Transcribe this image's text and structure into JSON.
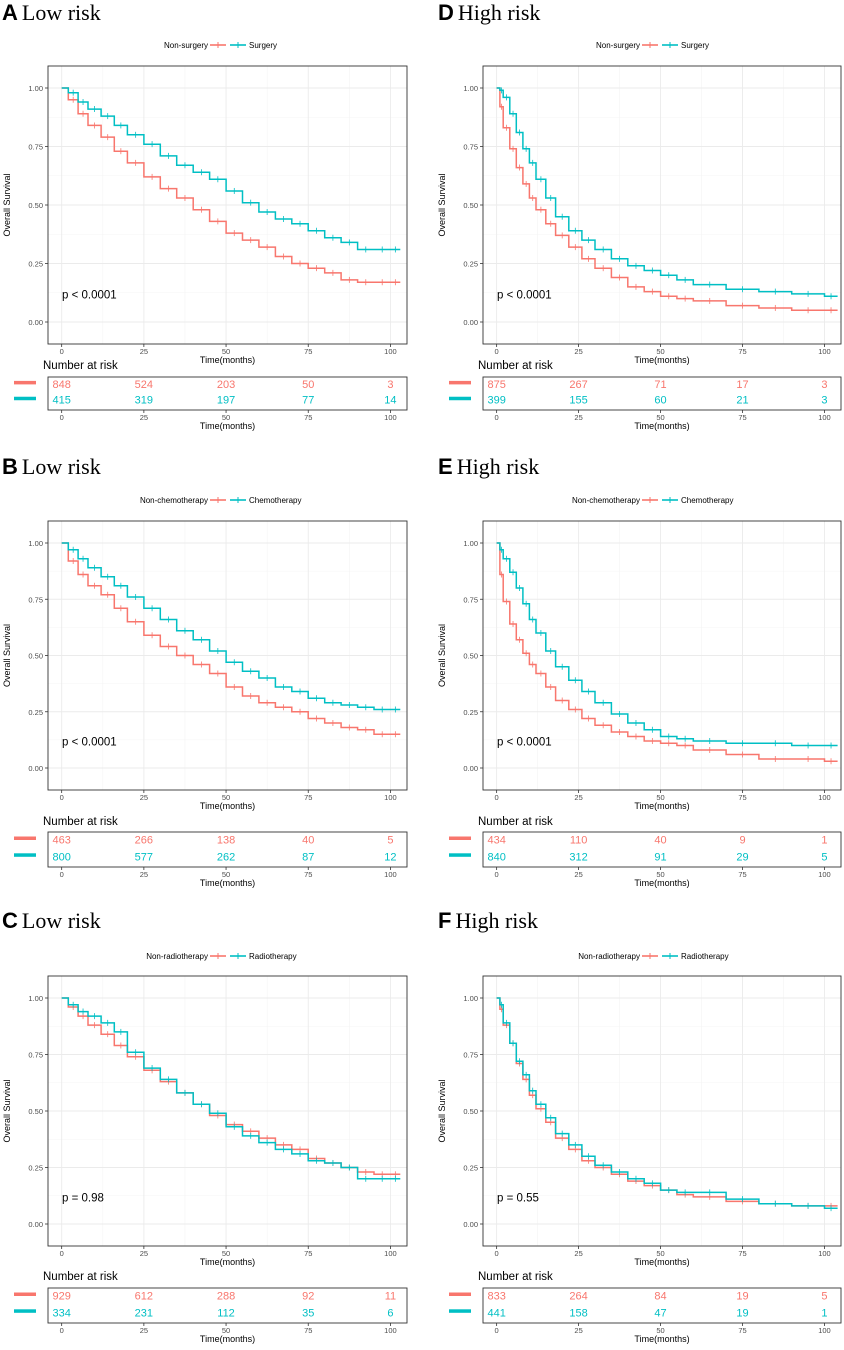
{
  "figure": {
    "x_axis_label": "Time(months)",
    "y_axis_label": "Overall Survival",
    "risk_table_title": "Number at risk",
    "colors": {
      "group1": "#F8766D",
      "group2": "#00BFC4",
      "frame": "#333333",
      "grid": "#EBEBEB",
      "tick_text": "#4D4D4D"
    }
  },
  "chart_data": [
    {
      "type": "line",
      "panel_letter": "A",
      "title": "Low  risk",
      "legend": [
        "Non-surgery",
        "Surgery"
      ],
      "pvalue": "p < 0.0001",
      "xlabel": "Time(months)",
      "ylabel": "Overall Survival",
      "xlim": [
        0,
        104
      ],
      "ylim": [
        0,
        1
      ],
      "x_ticks": [
        "0",
        "25",
        "50",
        "75",
        "100"
      ],
      "y_ticks": [
        "0.00",
        "0.25",
        "0.50",
        "0.75",
        "1.00"
      ],
      "series": [
        {
          "name": "Non-surgery",
          "x": [
            0,
            2,
            5,
            8,
            12,
            16,
            20,
            25,
            30,
            35,
            40,
            45,
            50,
            55,
            60,
            65,
            70,
            75,
            80,
            85,
            90,
            95,
            100,
            103
          ],
          "y": [
            1.0,
            0.95,
            0.89,
            0.84,
            0.79,
            0.73,
            0.68,
            0.62,
            0.57,
            0.53,
            0.48,
            0.43,
            0.38,
            0.35,
            0.32,
            0.28,
            0.25,
            0.23,
            0.21,
            0.18,
            0.17,
            0.17,
            0.17,
            0.17
          ]
        },
        {
          "name": "Surgery",
          "x": [
            0,
            2,
            5,
            8,
            12,
            16,
            20,
            25,
            30,
            35,
            40,
            45,
            50,
            55,
            60,
            65,
            70,
            75,
            80,
            85,
            90,
            95,
            100,
            103
          ],
          "y": [
            1.0,
            0.98,
            0.94,
            0.91,
            0.88,
            0.84,
            0.8,
            0.76,
            0.71,
            0.67,
            0.64,
            0.61,
            0.56,
            0.51,
            0.47,
            0.44,
            0.42,
            0.39,
            0.36,
            0.34,
            0.31,
            0.31,
            0.31,
            0.31
          ]
        }
      ],
      "risk_table": {
        "times": [
          "0",
          "25",
          "50",
          "75",
          "100"
        ],
        "rows": [
          {
            "name": "Non-surgery",
            "values": [
              "848",
              "524",
              "203",
              "50",
              "3"
            ]
          },
          {
            "name": "Surgery",
            "values": [
              "415",
              "319",
              "197",
              "77",
              "14"
            ]
          }
        ]
      }
    },
    {
      "type": "line",
      "panel_letter": "B",
      "title": "Low  risk",
      "legend": [
        "Non-chemotherapy",
        "Chemotherapy"
      ],
      "pvalue": "p < 0.0001",
      "xlabel": "Time(months)",
      "ylabel": "Overall Survival",
      "xlim": [
        0,
        104
      ],
      "ylim": [
        0,
        1
      ],
      "x_ticks": [
        "0",
        "25",
        "50",
        "75",
        "100"
      ],
      "y_ticks": [
        "0.00",
        "0.25",
        "0.50",
        "0.75",
        "1.00"
      ],
      "series": [
        {
          "name": "Non-chemotherapy",
          "x": [
            0,
            2,
            5,
            8,
            12,
            16,
            20,
            25,
            30,
            35,
            40,
            45,
            50,
            55,
            60,
            65,
            70,
            75,
            80,
            85,
            90,
            95,
            100,
            103
          ],
          "y": [
            1.0,
            0.92,
            0.86,
            0.81,
            0.77,
            0.71,
            0.65,
            0.59,
            0.54,
            0.5,
            0.46,
            0.42,
            0.36,
            0.32,
            0.29,
            0.27,
            0.25,
            0.22,
            0.2,
            0.18,
            0.17,
            0.15,
            0.15,
            0.15
          ]
        },
        {
          "name": "Chemotherapy",
          "x": [
            0,
            2,
            5,
            8,
            12,
            16,
            20,
            25,
            30,
            35,
            40,
            45,
            50,
            55,
            60,
            65,
            70,
            75,
            80,
            85,
            90,
            95,
            100,
            103
          ],
          "y": [
            1.0,
            0.97,
            0.93,
            0.89,
            0.85,
            0.81,
            0.76,
            0.71,
            0.66,
            0.61,
            0.57,
            0.52,
            0.47,
            0.43,
            0.4,
            0.36,
            0.34,
            0.31,
            0.29,
            0.28,
            0.27,
            0.26,
            0.26,
            0.26
          ]
        }
      ],
      "risk_table": {
        "times": [
          "0",
          "25",
          "50",
          "75",
          "100"
        ],
        "rows": [
          {
            "name": "Non-chemotherapy",
            "values": [
              "463",
              "266",
              "138",
              "40",
              "5"
            ]
          },
          {
            "name": "Chemotherapy",
            "values": [
              "800",
              "577",
              "262",
              "87",
              "12"
            ]
          }
        ]
      }
    },
    {
      "type": "line",
      "panel_letter": "C",
      "title": "Low  risk",
      "legend": [
        "Non-radiotherapy",
        "Radiotherapy"
      ],
      "pvalue": "p = 0.98",
      "xlabel": "Time(months)",
      "ylabel": "Overall Survival",
      "xlim": [
        0,
        104
      ],
      "ylim": [
        0,
        1
      ],
      "x_ticks": [
        "0",
        "25",
        "50",
        "75",
        "100"
      ],
      "y_ticks": [
        "0.00",
        "0.25",
        "0.50",
        "0.75",
        "1.00"
      ],
      "series": [
        {
          "name": "Non-radiotherapy",
          "x": [
            0,
            2,
            5,
            8,
            12,
            16,
            20,
            25,
            30,
            35,
            40,
            45,
            50,
            55,
            60,
            65,
            70,
            75,
            80,
            85,
            90,
            95,
            100,
            103
          ],
          "y": [
            1.0,
            0.96,
            0.92,
            0.88,
            0.84,
            0.79,
            0.74,
            0.68,
            0.63,
            0.58,
            0.53,
            0.48,
            0.44,
            0.41,
            0.38,
            0.35,
            0.33,
            0.29,
            0.27,
            0.25,
            0.23,
            0.22,
            0.22,
            0.22
          ]
        },
        {
          "name": "Radiotherapy",
          "x": [
            0,
            2,
            5,
            8,
            12,
            16,
            20,
            25,
            30,
            35,
            40,
            45,
            50,
            55,
            60,
            65,
            70,
            75,
            80,
            85,
            90,
            95,
            100,
            103
          ],
          "y": [
            1.0,
            0.97,
            0.94,
            0.92,
            0.89,
            0.85,
            0.76,
            0.69,
            0.64,
            0.58,
            0.53,
            0.49,
            0.43,
            0.39,
            0.36,
            0.33,
            0.31,
            0.28,
            0.27,
            0.25,
            0.2,
            0.2,
            0.2,
            0.2
          ]
        }
      ],
      "risk_table": {
        "times": [
          "0",
          "25",
          "50",
          "75",
          "100"
        ],
        "rows": [
          {
            "name": "Non-radiotherapy",
            "values": [
              "929",
              "612",
              "288",
              "92",
              "11"
            ]
          },
          {
            "name": "Radiotherapy",
            "values": [
              "334",
              "231",
              "112",
              "35",
              "6"
            ]
          }
        ]
      }
    },
    {
      "type": "line",
      "panel_letter": "D",
      "title": "High  risk",
      "legend": [
        "Non-surgery",
        "Surgery"
      ],
      "pvalue": "p < 0.0001",
      "xlabel": "Time(months)",
      "ylabel": "Overall Survival",
      "xlim": [
        0,
        104
      ],
      "ylim": [
        0,
        1
      ],
      "x_ticks": [
        "0",
        "25",
        "50",
        "75",
        "100"
      ],
      "y_ticks": [
        "0.00",
        "0.25",
        "0.50",
        "0.75",
        "1.00"
      ],
      "series": [
        {
          "name": "Non-surgery",
          "x": [
            0,
            1,
            2,
            4,
            6,
            8,
            10,
            12,
            15,
            18,
            22,
            26,
            30,
            35,
            40,
            45,
            50,
            55,
            60,
            70,
            80,
            90,
            100,
            104
          ],
          "y": [
            1.0,
            0.92,
            0.83,
            0.74,
            0.66,
            0.59,
            0.53,
            0.48,
            0.42,
            0.37,
            0.32,
            0.27,
            0.23,
            0.19,
            0.15,
            0.13,
            0.11,
            0.1,
            0.09,
            0.07,
            0.06,
            0.05,
            0.05,
            0.05
          ]
        },
        {
          "name": "Surgery",
          "x": [
            0,
            1,
            2,
            4,
            6,
            8,
            10,
            12,
            15,
            18,
            22,
            26,
            30,
            35,
            40,
            45,
            50,
            55,
            60,
            70,
            80,
            90,
            100,
            104
          ],
          "y": [
            1.0,
            0.99,
            0.96,
            0.89,
            0.81,
            0.74,
            0.68,
            0.61,
            0.53,
            0.45,
            0.39,
            0.35,
            0.31,
            0.27,
            0.24,
            0.22,
            0.2,
            0.18,
            0.16,
            0.14,
            0.13,
            0.12,
            0.11,
            0.11
          ]
        }
      ],
      "risk_table": {
        "times": [
          "0",
          "25",
          "50",
          "75",
          "100"
        ],
        "rows": [
          {
            "name": "Non-surgery",
            "values": [
              "875",
              "267",
              "71",
              "17",
              "3"
            ]
          },
          {
            "name": "Surgery",
            "values": [
              "399",
              "155",
              "60",
              "21",
              "3"
            ]
          }
        ]
      }
    },
    {
      "type": "line",
      "panel_letter": "E",
      "title": "High risk",
      "legend": [
        "Non-chemotherapy",
        "Chemotherapy"
      ],
      "pvalue": "p < 0.0001",
      "xlabel": "Time(months)",
      "ylabel": "Overall Survival",
      "xlim": [
        0,
        104
      ],
      "ylim": [
        0,
        1
      ],
      "x_ticks": [
        "0",
        "25",
        "50",
        "75",
        "100"
      ],
      "y_ticks": [
        "0.00",
        "0.25",
        "0.50",
        "0.75",
        "1.00"
      ],
      "series": [
        {
          "name": "Non-chemotherapy",
          "x": [
            0,
            1,
            2,
            4,
            6,
            8,
            10,
            12,
            15,
            18,
            22,
            26,
            30,
            35,
            40,
            45,
            50,
            55,
            60,
            70,
            80,
            90,
            100,
            104
          ],
          "y": [
            1.0,
            0.86,
            0.74,
            0.64,
            0.57,
            0.51,
            0.46,
            0.42,
            0.36,
            0.3,
            0.26,
            0.22,
            0.19,
            0.16,
            0.14,
            0.12,
            0.11,
            0.1,
            0.08,
            0.06,
            0.04,
            0.04,
            0.03,
            0.03
          ]
        },
        {
          "name": "Chemotherapy",
          "x": [
            0,
            1,
            2,
            4,
            6,
            8,
            10,
            12,
            15,
            18,
            22,
            26,
            30,
            35,
            40,
            45,
            50,
            55,
            60,
            70,
            80,
            90,
            100,
            104
          ],
          "y": [
            1.0,
            0.97,
            0.93,
            0.87,
            0.8,
            0.73,
            0.66,
            0.6,
            0.52,
            0.45,
            0.39,
            0.34,
            0.29,
            0.24,
            0.2,
            0.17,
            0.14,
            0.13,
            0.12,
            0.11,
            0.11,
            0.1,
            0.1,
            0.1
          ]
        }
      ],
      "risk_table": {
        "times": [
          "0",
          "25",
          "50",
          "75",
          "100"
        ],
        "rows": [
          {
            "name": "Non-chemotherapy",
            "values": [
              "434",
              "110",
              "40",
              "9",
              "1"
            ]
          },
          {
            "name": "Chemotherapy",
            "values": [
              "840",
              "312",
              "91",
              "29",
              "5"
            ]
          }
        ]
      }
    },
    {
      "type": "line",
      "panel_letter": "F",
      "title": "High  risk",
      "legend": [
        "Non-radiotherapy",
        "Radiotherapy"
      ],
      "pvalue": "p = 0.55",
      "xlabel": "Time(months)",
      "ylabel": "Overall Survival",
      "xlim": [
        0,
        104
      ],
      "ylim": [
        0,
        1
      ],
      "x_ticks": [
        "0",
        "25",
        "50",
        "75",
        "100"
      ],
      "y_ticks": [
        "0.00",
        "0.25",
        "0.50",
        "0.75",
        "1.00"
      ],
      "series": [
        {
          "name": "Non-radiotherapy",
          "x": [
            0,
            1,
            2,
            4,
            6,
            8,
            10,
            12,
            15,
            18,
            22,
            26,
            30,
            35,
            40,
            45,
            50,
            55,
            60,
            70,
            80,
            90,
            100,
            104
          ],
          "y": [
            1.0,
            0.95,
            0.88,
            0.8,
            0.71,
            0.64,
            0.57,
            0.51,
            0.45,
            0.38,
            0.33,
            0.28,
            0.25,
            0.22,
            0.19,
            0.17,
            0.15,
            0.13,
            0.12,
            0.1,
            0.09,
            0.08,
            0.08,
            0.08
          ]
        },
        {
          "name": "Radiotherapy",
          "x": [
            0,
            1,
            2,
            4,
            6,
            8,
            10,
            12,
            15,
            18,
            22,
            26,
            30,
            35,
            40,
            45,
            50,
            55,
            60,
            70,
            80,
            90,
            100,
            104
          ],
          "y": [
            1.0,
            0.97,
            0.89,
            0.8,
            0.72,
            0.66,
            0.59,
            0.53,
            0.47,
            0.4,
            0.35,
            0.3,
            0.26,
            0.23,
            0.2,
            0.18,
            0.15,
            0.14,
            0.14,
            0.11,
            0.09,
            0.08,
            0.07,
            0.07
          ]
        }
      ],
      "risk_table": {
        "times": [
          "0",
          "25",
          "50",
          "75",
          "100"
        ],
        "rows": [
          {
            "name": "Non-radiotherapy",
            "values": [
              "833",
              "264",
              "84",
              "19",
              "5"
            ]
          },
          {
            "name": "Radiotherapy",
            "values": [
              "441",
              "158",
              "47",
              "19",
              "1"
            ]
          }
        ]
      }
    }
  ]
}
